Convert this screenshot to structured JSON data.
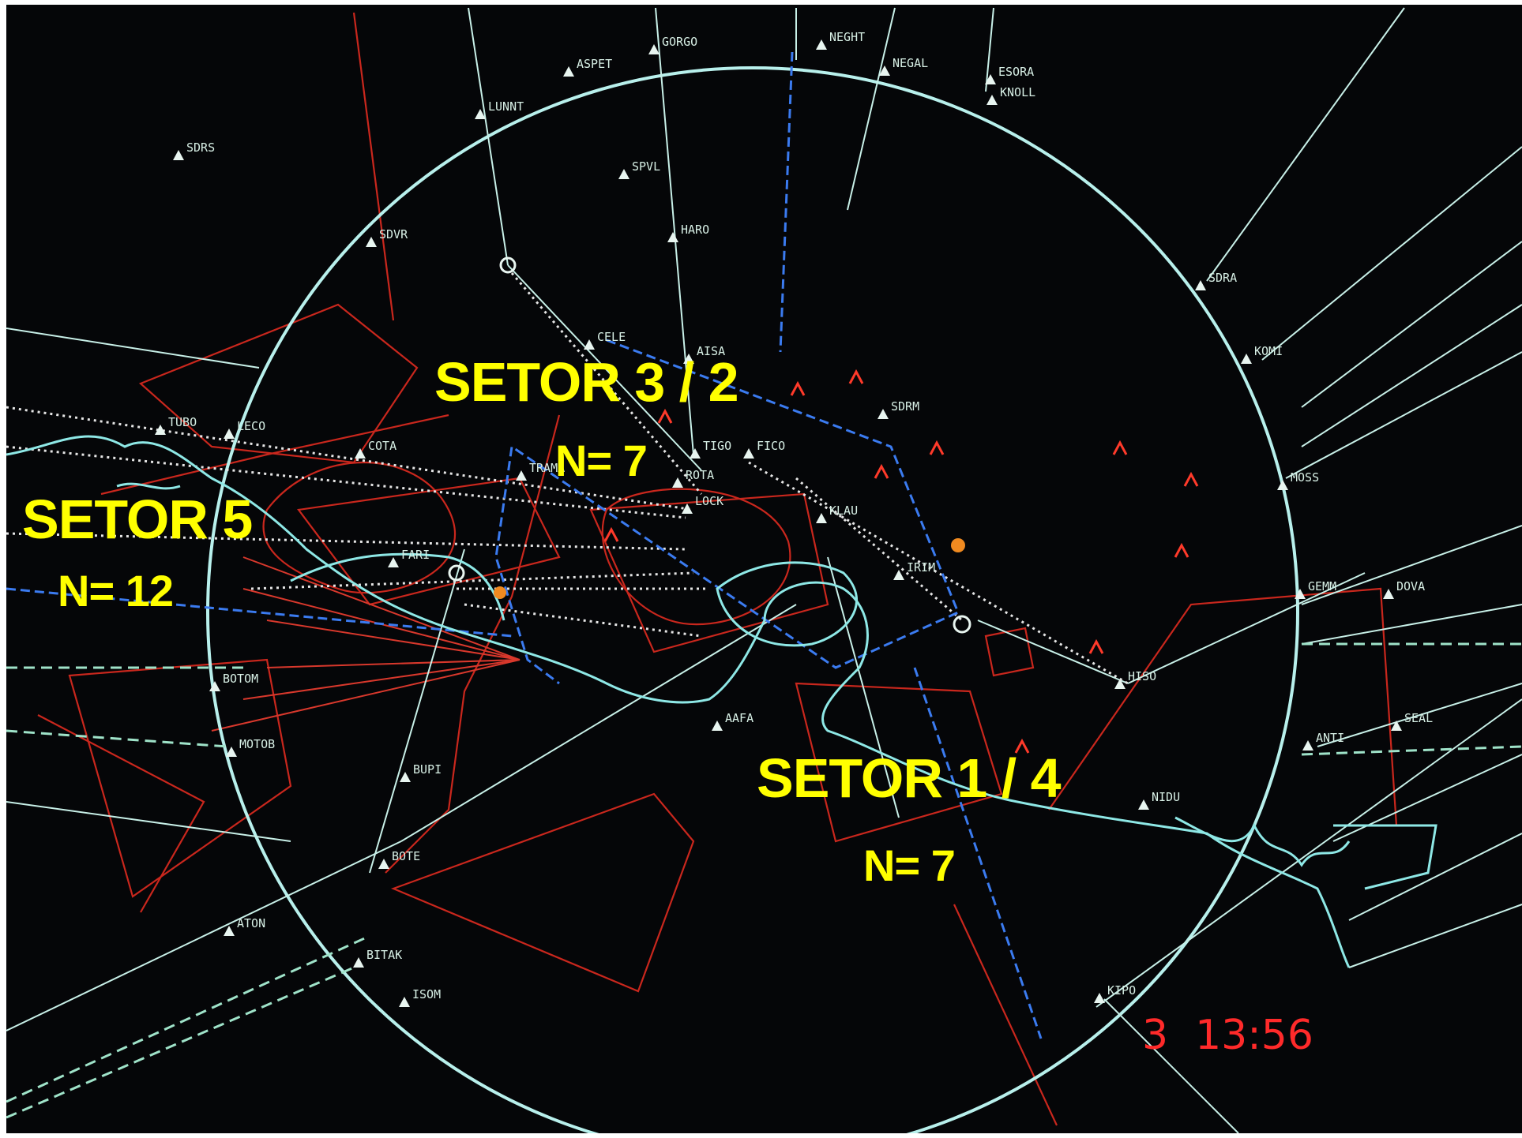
{
  "sectors": [
    {
      "id": "s32",
      "label": "SETOR 3 / 2",
      "count": "N= 7"
    },
    {
      "id": "s5",
      "label": "SETOR 5",
      "count": "N= 12"
    },
    {
      "id": "s14",
      "label": "SETOR 1 / 4",
      "count": "N= 7"
    }
  ],
  "clock": {
    "day": "3",
    "time": "13:56"
  },
  "fixes": [
    "LUNNT",
    "ASPET",
    "GORGO",
    "NEGHT",
    "NEGAL",
    "ESORA",
    "KNOLL",
    "SDRS",
    "SPVL",
    "HARO",
    "SDVR",
    "CELE",
    "AISA",
    "SDRM",
    "TIGO",
    "FICO",
    "ROTA",
    "LOCK",
    "KLAU",
    "TUBO",
    "LECO",
    "COTA",
    "TRAMA",
    "FARI",
    "IRIM",
    "BOTOM",
    "MOTOB",
    "BUPI",
    "BOTE",
    "ATON",
    "BITAK",
    "ISOM",
    "HISO",
    "MOSS",
    "KOMI",
    "SDRA",
    "GEMM",
    "DOVA",
    "ANTI",
    "SEAL",
    "KIPO",
    "NIDU",
    "AAFA"
  ],
  "colors": {
    "background": "#050608",
    "ring": "#b8f0ec",
    "sector_boundary": "#3b7bf0",
    "airway": "#c8f0e8",
    "restricted_area": "#d02a20",
    "label": "#ffff00",
    "clock": "#ff2a2a",
    "coastline": "#8ee8e6"
  }
}
